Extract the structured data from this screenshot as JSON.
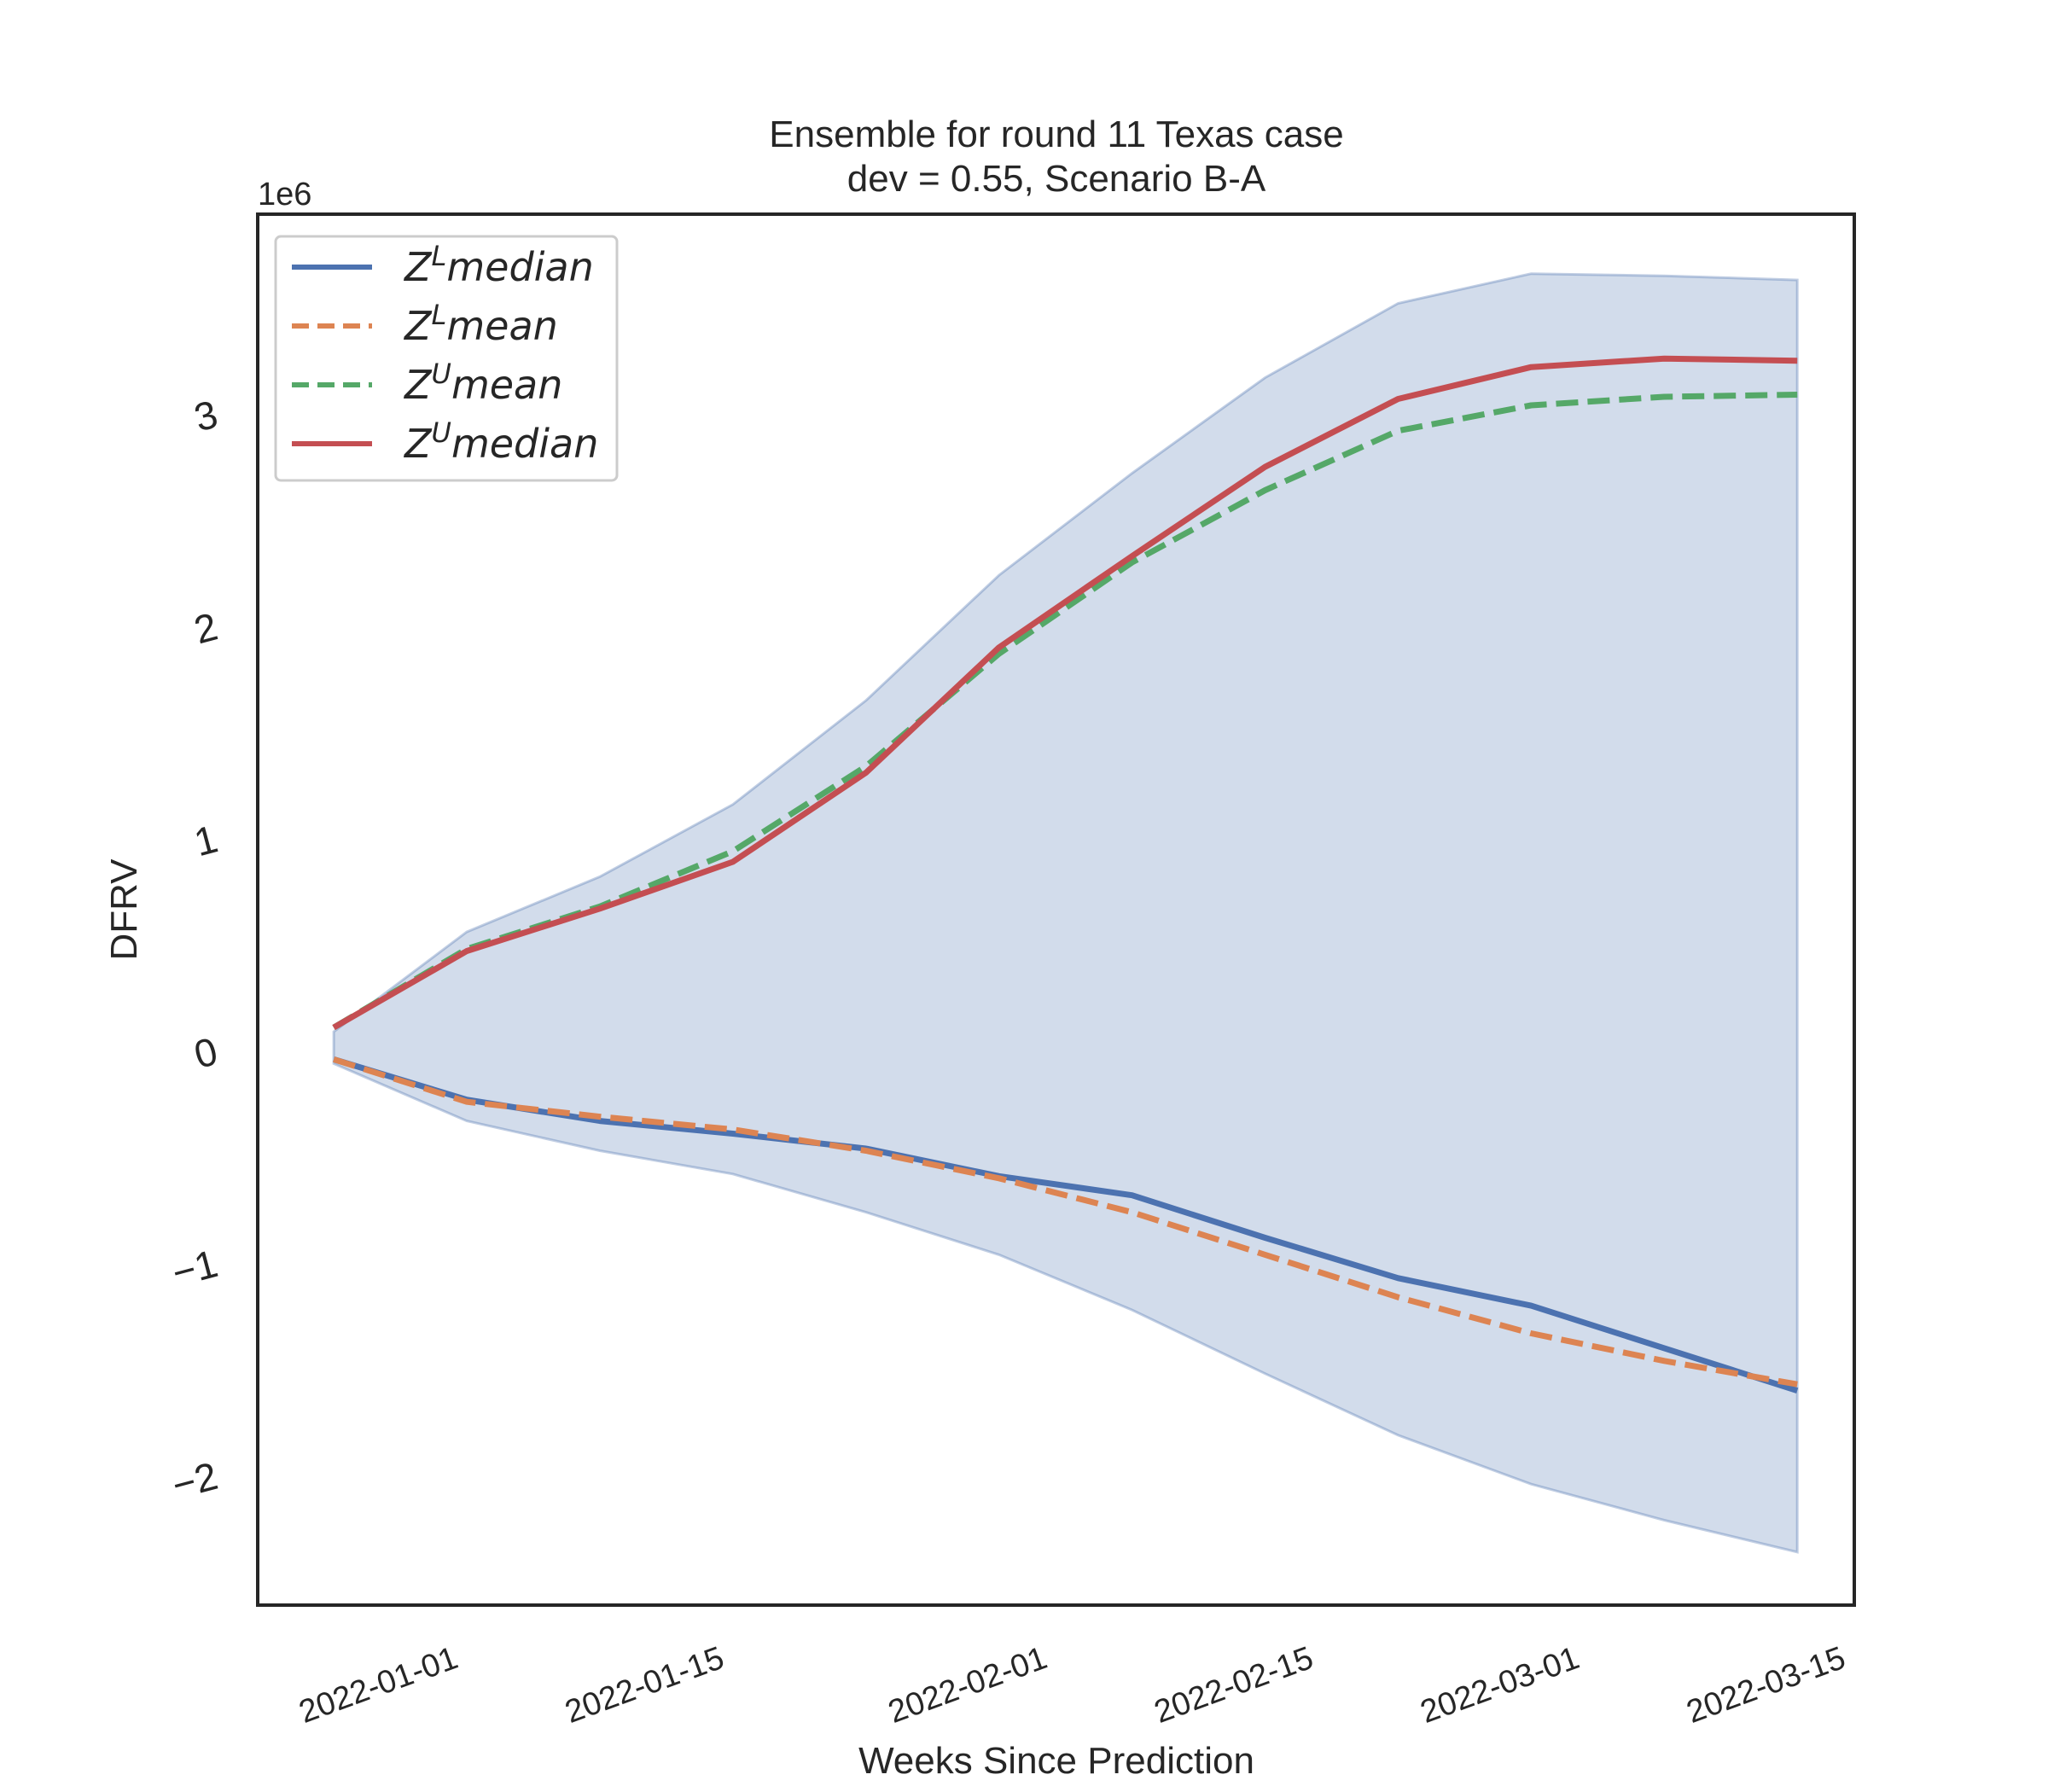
{
  "chart_data": {
    "type": "line",
    "title": "Ensemble for round 11 Texas case",
    "subtitle": "dev = 0.55, Scenario B-A",
    "xlabel": "Weeks Since Prediction",
    "ylabel": "DFRV",
    "y_offset_label": "1e6",
    "y_unit_scale": 1000000,
    "ylim": [
      -2.6,
      3.95
    ],
    "xlim": [
      "2021-12-21",
      "2022-03-15"
    ],
    "x_ticks": [
      "2022-01-01",
      "2022-01-15",
      "2022-02-01",
      "2022-02-15",
      "2022-03-01",
      "2022-03-15"
    ],
    "y_ticks": [
      -2,
      -1,
      0,
      1,
      2,
      3
    ],
    "y_tick_labels": [
      "−2",
      "−1",
      "0",
      "1",
      "2",
      "3"
    ],
    "grid": false,
    "legend_position": "upper-left",
    "x": [
      "2021-12-25",
      "2022-01-01",
      "2022-01-08",
      "2022-01-15",
      "2022-01-22",
      "2022-01-29",
      "2022-02-05",
      "2022-02-12",
      "2022-02-19",
      "2022-02-26",
      "2022-03-05",
      "2022-03-12"
    ],
    "band": {
      "color": "#4c72b0",
      "opacity": 0.25,
      "upper": [
        0.1,
        0.57,
        0.83,
        1.17,
        1.66,
        2.25,
        2.73,
        3.18,
        3.53,
        3.67,
        3.66,
        3.64
      ],
      "lower": [
        -0.05,
        -0.32,
        -0.46,
        -0.57,
        -0.75,
        -0.95,
        -1.21,
        -1.51,
        -1.8,
        -2.03,
        -2.2,
        -2.35
      ]
    },
    "series": [
      {
        "name": "$Z^L median$",
        "color": "#4c72b0",
        "dash": "solid",
        "values": [
          -0.03,
          -0.22,
          -0.32,
          -0.38,
          -0.45,
          -0.58,
          -0.67,
          -0.87,
          -1.06,
          -1.19,
          -1.39,
          -1.59
        ]
      },
      {
        "name": "$Z^L mean$",
        "color": "#dd8452",
        "dash": "dashed",
        "values": [
          -0.03,
          -0.23,
          -0.3,
          -0.36,
          -0.46,
          -0.59,
          -0.75,
          -0.95,
          -1.15,
          -1.32,
          -1.45,
          -1.56
        ]
      },
      {
        "name": "$Z^U mean$",
        "color": "#55a868",
        "dash": "dashed",
        "values": [
          0.12,
          0.49,
          0.69,
          0.95,
          1.35,
          1.88,
          2.31,
          2.65,
          2.93,
          3.05,
          3.09,
          3.1
        ]
      },
      {
        "name": "$Z^U median$",
        "color": "#c44e52",
        "dash": "solid",
        "values": [
          0.12,
          0.48,
          0.68,
          0.9,
          1.32,
          1.91,
          2.34,
          2.76,
          3.08,
          3.23,
          3.27,
          3.26
        ]
      }
    ]
  }
}
